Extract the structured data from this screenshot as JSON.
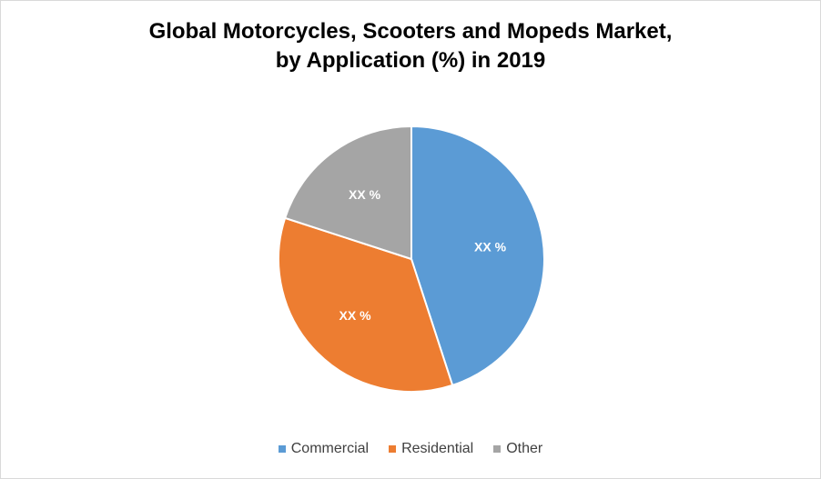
{
  "chart_data": {
    "type": "pie",
    "title": "Global Motorcycles, Scooters and Mopeds Market, by Application (%) in 2019",
    "title_lines": [
      "Global Motorcycles, Scooters and Mopeds Market,",
      "by Application (%) in 2019"
    ],
    "categories": [
      "Commercial",
      "Residential",
      "Other"
    ],
    "values": [
      45,
      35,
      20
    ],
    "data_labels": [
      "XX %",
      "XX %",
      "XX %"
    ],
    "colors": [
      "#5B9BD5",
      "#ED7D31",
      "#A5A5A5"
    ],
    "legend_position": "bottom"
  }
}
